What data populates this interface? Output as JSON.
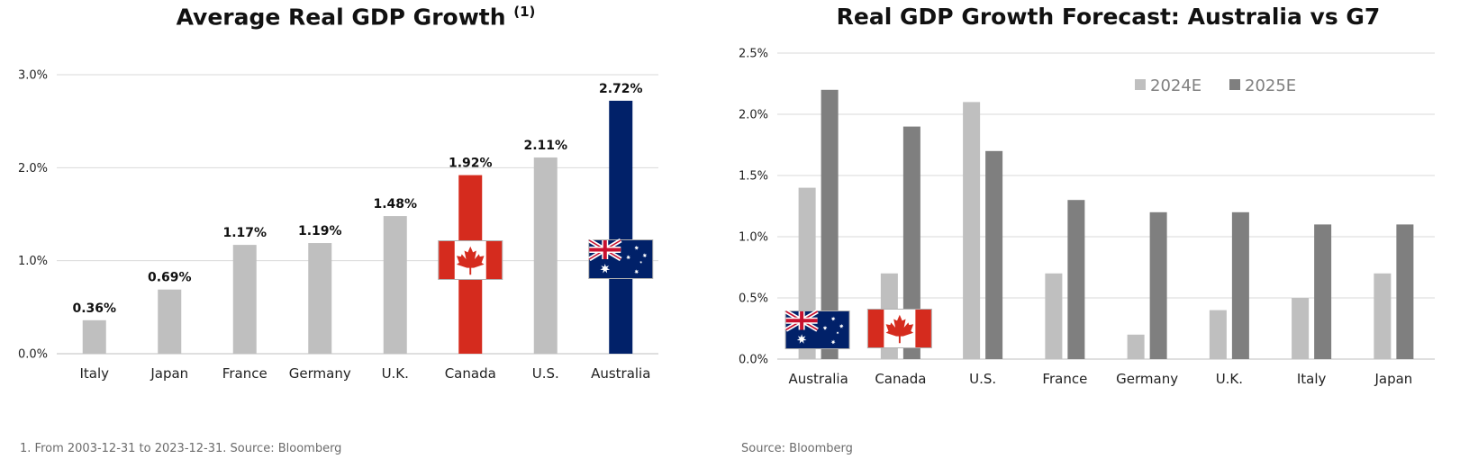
{
  "colors": {
    "bar_gray": "#bfbfbf",
    "bar_dark_gray": "#7f7f7f",
    "canada_red": "#d52b1e",
    "australia_navy": "#012169",
    "gridline": "#d9d9d9",
    "text": "#111111"
  },
  "left": {
    "title": "Average Real GDP Growth",
    "title_note": "(1)",
    "footnote": "1. From 2003-12-31 to 2023-12-31. Source: Bloomberg"
  },
  "right": {
    "title": "Real GDP Growth Forecast: Australia vs G7",
    "footnote": "Source: Bloomberg"
  },
  "chart_data": [
    {
      "type": "bar",
      "title": "Average Real GDP Growth (1)",
      "categories": [
        "Italy",
        "Japan",
        "France",
        "Germany",
        "U.K.",
        "Canada",
        "U.S.",
        "Australia"
      ],
      "values": [
        0.36,
        0.69,
        1.17,
        1.19,
        1.48,
        1.92,
        2.11,
        2.72
      ],
      "data_labels": [
        "0.36%",
        "0.69%",
        "1.17%",
        "1.19%",
        "1.48%",
        "1.92%",
        "2.11%",
        "2.72%"
      ],
      "bar_colors": [
        "#bfbfbf",
        "#bfbfbf",
        "#bfbfbf",
        "#bfbfbf",
        "#bfbfbf",
        "#d52b1e",
        "#bfbfbf",
        "#012169"
      ],
      "flags": [
        null,
        null,
        null,
        null,
        null,
        "canada-flag",
        null,
        "australia-flag"
      ],
      "ylim": [
        0,
        3.0
      ],
      "yticks": [
        0,
        1,
        2,
        3
      ],
      "ytick_labels": [
        "0.0%",
        "1.0%",
        "2.0%",
        "3.0%"
      ],
      "grid": true,
      "xlabel": "",
      "ylabel": ""
    },
    {
      "type": "bar",
      "title": "Real GDP Growth Forecast: Australia vs G7",
      "categories": [
        "Australia",
        "Canada",
        "U.S.",
        "France",
        "Germany",
        "U.K.",
        "Italy",
        "Japan"
      ],
      "series": [
        {
          "name": "2024E",
          "color": "#bfbfbf",
          "values": [
            1.4,
            0.7,
            2.1,
            0.7,
            0.2,
            0.4,
            0.5,
            0.7
          ]
        },
        {
          "name": "2025E",
          "color": "#7f7f7f",
          "values": [
            2.2,
            1.9,
            1.7,
            1.3,
            1.2,
            1.2,
            1.1,
            1.1
          ]
        }
      ],
      "flags": [
        "australia-flag",
        "canada-flag",
        null,
        null,
        null,
        null,
        null,
        null
      ],
      "ylim": [
        0,
        2.5
      ],
      "yticks": [
        0,
        0.5,
        1.0,
        1.5,
        2.0,
        2.5
      ],
      "ytick_labels": [
        "0.0%",
        "0.5%",
        "1.0%",
        "1.5%",
        "2.0%",
        "2.5%"
      ],
      "legend": "top-right",
      "grid": true,
      "xlabel": "",
      "ylabel": ""
    }
  ]
}
